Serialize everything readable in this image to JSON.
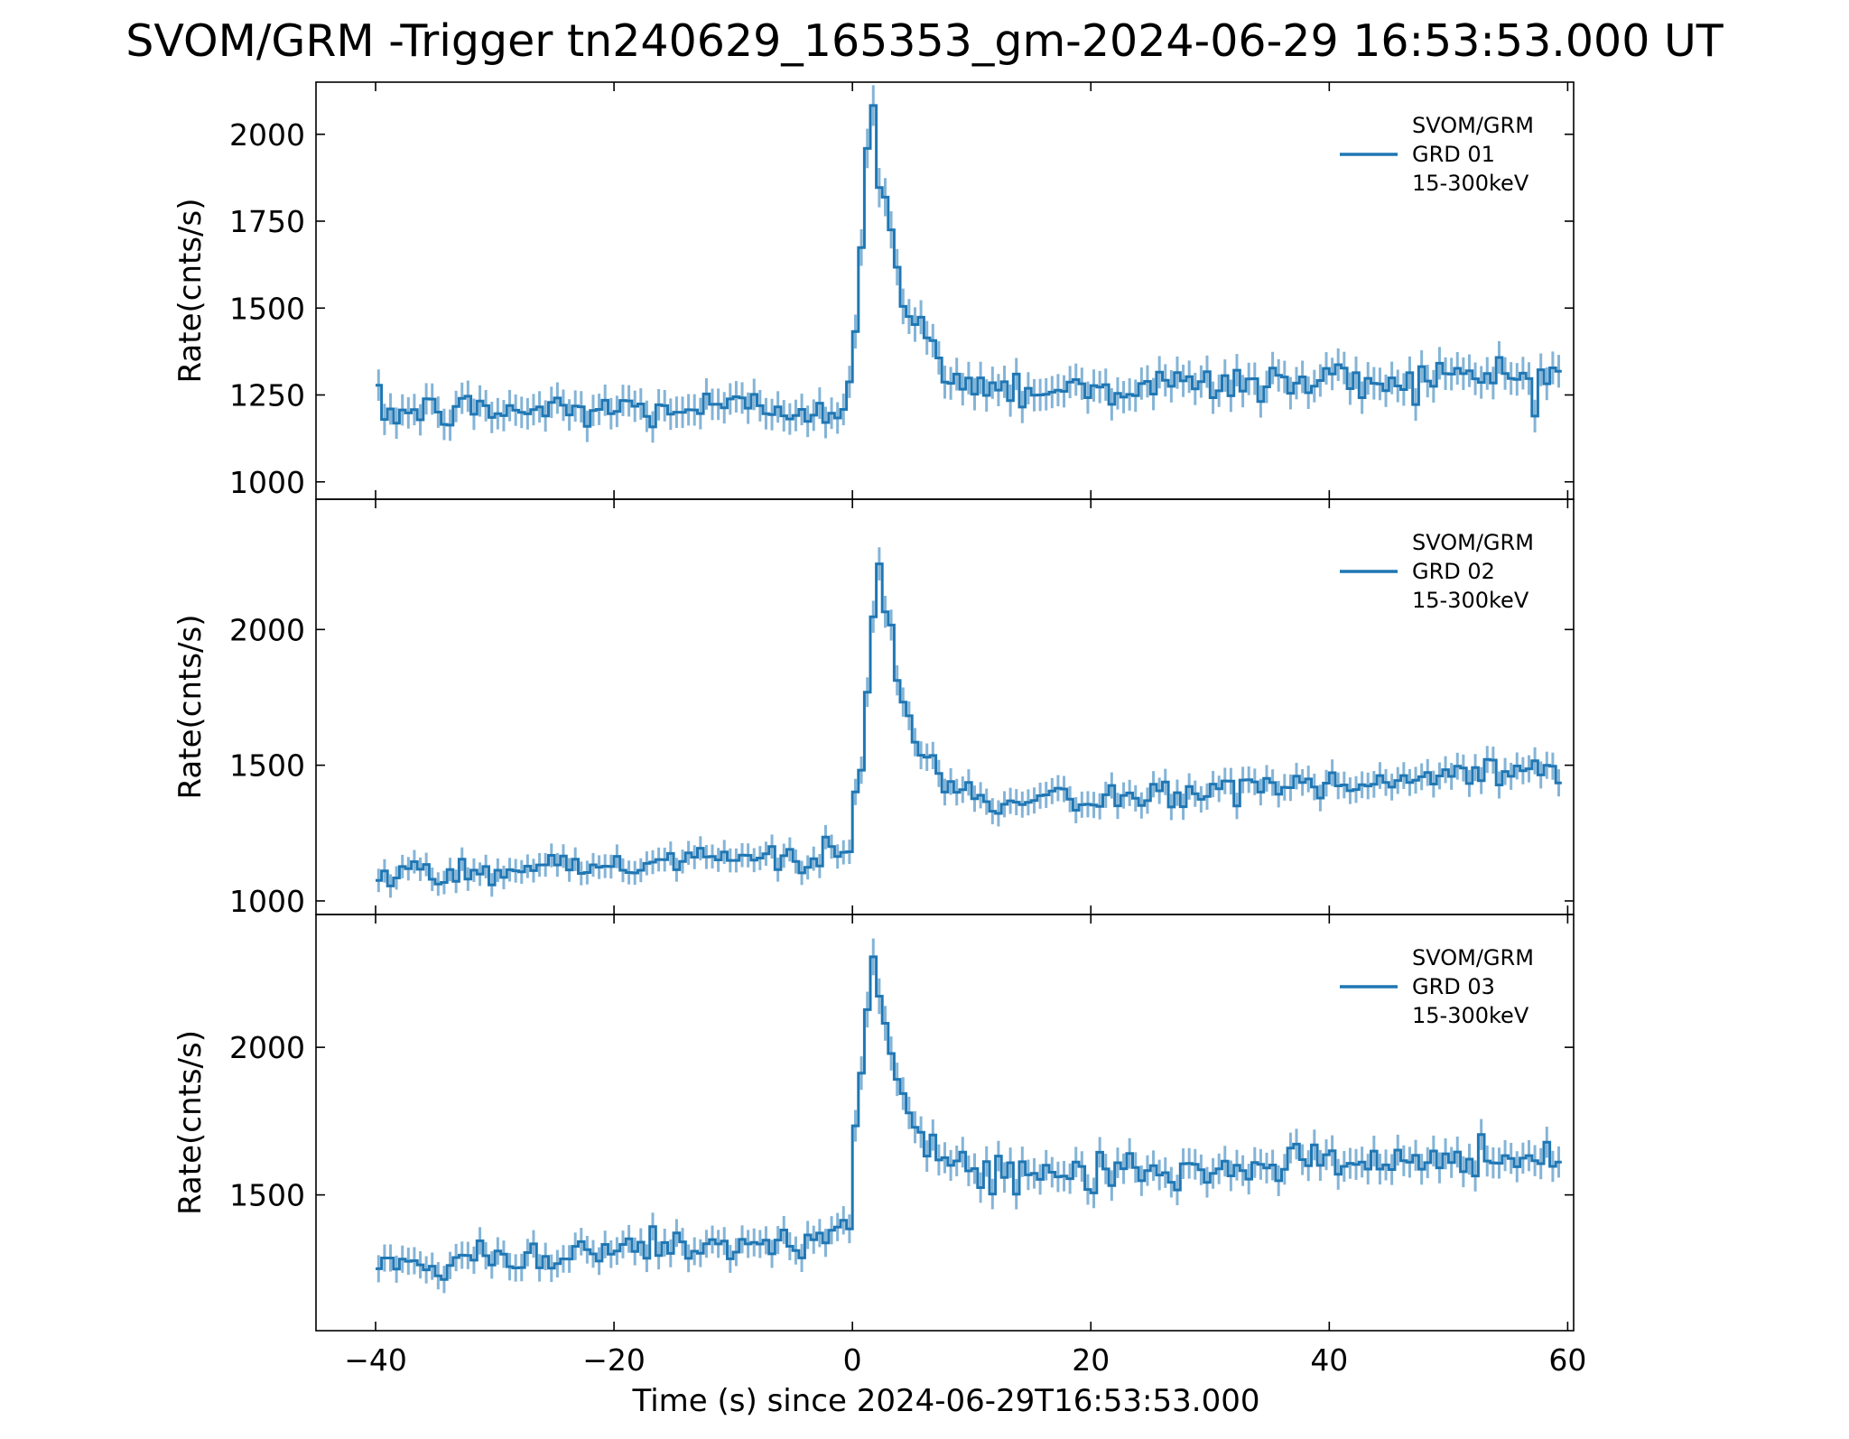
{
  "title": "SVOM/GRM -Trigger tn240629_165353_gm-2024-06-29 16:53:53.000 UT",
  "colors": {
    "line": "#1f77b4",
    "errorbar": "#1f77b4",
    "axes": "#000000"
  },
  "chart_data": [
    {
      "type": "line",
      "style": "step with error bars",
      "xlabel": "",
      "ylabel": "Rate(cnts/s)",
      "xlim": [
        -45,
        60.5
      ],
      "ylim": [
        950,
        2150
      ],
      "yticks": [
        1000,
        1250,
        1500,
        1750,
        2000
      ],
      "xticks": [
        -40,
        -20,
        0,
        20,
        40,
        60
      ],
      "legend_position": "top-right",
      "series": [
        {
          "name": "SVOM/GRM\nGRD 01\n15-300keV",
          "legend_lines": [
            "SVOM/GRM",
            "GRD 01",
            "15-300keV"
          ],
          "baseline_pre": 1200,
          "baseline_post": 1250,
          "baseline_end": 1310,
          "peak": 2030,
          "peak_time": 1.5,
          "bin_width": 0.5,
          "x_start": -40,
          "x_end": 59
        }
      ]
    },
    {
      "type": "line",
      "style": "step with error bars",
      "xlabel": "",
      "ylabel": "Rate(cnts/s)",
      "xlim": [
        -45,
        60.5
      ],
      "ylim": [
        950,
        2480
      ],
      "yticks": [
        1000,
        1500,
        2000
      ],
      "xticks": [
        -40,
        -20,
        0,
        20,
        40,
        60
      ],
      "legend_position": "top-right",
      "series": [
        {
          "name": "SVOM/GRM\nGRD 02\n15-300keV",
          "legend_lines": [
            "SVOM/GRM",
            "GRD 02",
            "15-300keV"
          ],
          "baseline_pre": 1100,
          "baseline_post": 1320,
          "baseline_end": 1480,
          "peak": 2200,
          "peak_time": 2.0,
          "bin_width": 0.5,
          "x_start": -40,
          "x_end": 59
        }
      ]
    },
    {
      "type": "line",
      "style": "step with error bars",
      "xlabel": "Time (s) since 2024-06-29T16:53:53.000",
      "ylabel": "Rate(cnts/s)",
      "xlim": [
        -45,
        60.5
      ],
      "ylim": [
        1040,
        2450
      ],
      "yticks": [
        1500,
        2000
      ],
      "xticks": [
        -40,
        -20,
        0,
        20,
        40,
        60
      ],
      "xticklabels": [
        "−40",
        "−20",
        "0",
        "20",
        "40",
        "60"
      ],
      "legend_position": "top-right",
      "series": [
        {
          "name": "SVOM/GRM\nGRD 03\n15-300keV",
          "legend_lines": [
            "SVOM/GRM",
            "GRD 03",
            "15-300keV"
          ],
          "baseline_pre": 1250,
          "baseline_post": 1540,
          "baseline_end": 1640,
          "peak": 2290,
          "peak_time": 1.5,
          "bin_width": 0.5,
          "x_start": -40,
          "x_end": 59
        }
      ]
    }
  ]
}
